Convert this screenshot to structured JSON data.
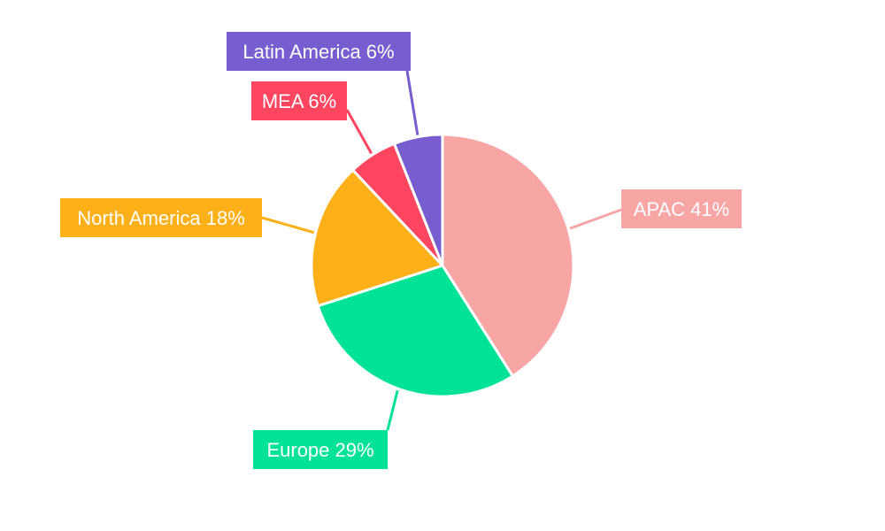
{
  "chart_data": {
    "type": "pie",
    "title": "",
    "legend": "none",
    "slices": [
      {
        "name": "APAC",
        "value": 41,
        "label": "APAC 41%",
        "color": "#F8A5A6"
      },
      {
        "name": "Europe",
        "value": 29,
        "label": "Europe 29%",
        "color": "#00E396"
      },
      {
        "name": "North America",
        "value": 18,
        "label": "North America 18%",
        "color": "#FEB019"
      },
      {
        "name": "MEA",
        "value": 6,
        "label": "MEA 6%",
        "color": "#FF4560"
      },
      {
        "name": "Latin America",
        "value": 6,
        "label": "Latin America 6%",
        "color": "#775DD0"
      }
    ]
  }
}
